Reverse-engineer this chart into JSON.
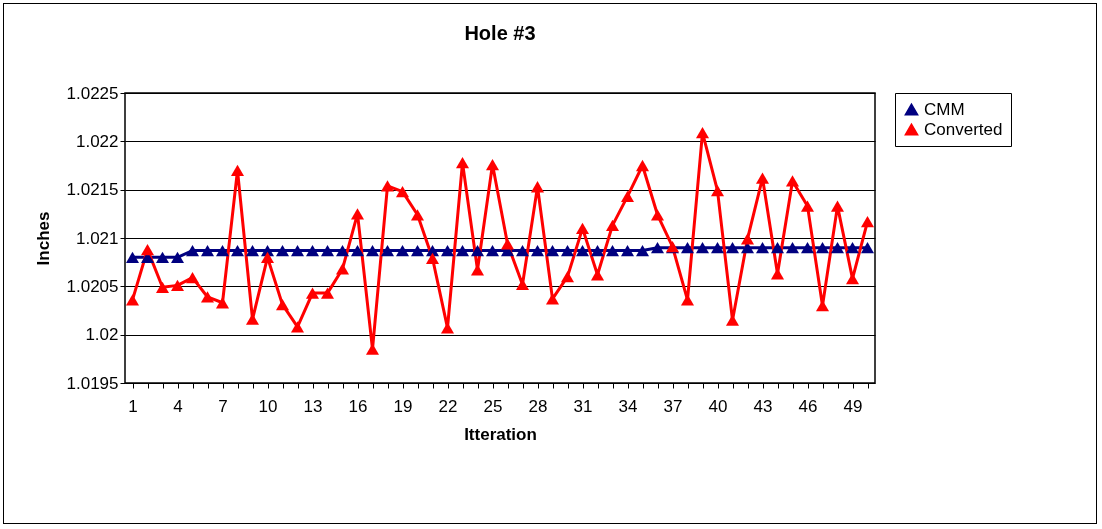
{
  "chart_data": {
    "type": "line",
    "title": "Hole #3",
    "xlabel": "Itteration",
    "ylabel": "Inches",
    "categories": [
      "1",
      null,
      null,
      "4",
      null,
      null,
      "7",
      null,
      null,
      "10",
      null,
      null,
      "13",
      null,
      null,
      "16",
      null,
      null,
      "19",
      null,
      null,
      "22",
      null,
      null,
      "25",
      null,
      null,
      "28",
      null,
      null,
      "31",
      null,
      null,
      "34",
      null,
      null,
      "37",
      null,
      null,
      "40",
      null,
      null,
      "43",
      null,
      null,
      "46",
      null,
      null,
      "49",
      null
    ],
    "series": [
      {
        "name": "CMM",
        "color": "#000080",
        "values": [
          1.0208,
          1.0208,
          1.0208,
          1.0208,
          1.02087,
          1.02087,
          1.02087,
          1.02087,
          1.02087,
          1.02087,
          1.02087,
          1.02087,
          1.02087,
          1.02087,
          1.02087,
          1.02087,
          1.02087,
          1.02087,
          1.02087,
          1.02087,
          1.02087,
          1.02087,
          1.02087,
          1.02087,
          1.02087,
          1.02087,
          1.02087,
          1.02087,
          1.02087,
          1.02087,
          1.02087,
          1.02087,
          1.02087,
          1.02087,
          1.02087,
          1.0209,
          1.0209,
          1.0209,
          1.0209,
          1.0209,
          1.0209,
          1.0209,
          1.0209,
          1.0209,
          1.0209,
          1.0209,
          1.0209,
          1.0209,
          1.0209,
          1.0209
        ]
      },
      {
        "name": "Converted",
        "color": "#ff0000",
        "values": [
          1.02036,
          1.02088,
          1.02049,
          1.02051,
          1.02059,
          1.02039,
          1.02033,
          1.0217,
          1.02016,
          1.0208,
          1.02031,
          1.02008,
          1.02043,
          1.02043,
          1.02068,
          1.02125,
          1.01985,
          1.02154,
          1.02148,
          1.02124,
          1.02079,
          1.02007,
          1.02178,
          1.02067,
          1.02176,
          1.02094,
          1.02052,
          1.02153,
          1.02037,
          1.0206,
          1.0211,
          1.02062,
          1.02113,
          1.02143,
          1.02175,
          1.02124,
          1.02091,
          1.02036,
          1.02209,
          1.02149,
          1.02015,
          1.02099,
          1.02162,
          1.02063,
          1.02159,
          1.02133,
          1.0203,
          1.02133,
          1.02058,
          1.02117
        ]
      }
    ],
    "ylim": [
      1.0195,
      1.0225
    ],
    "yticks": [
      1.0195,
      1.02,
      1.0205,
      1.021,
      1.0215,
      1.022,
      1.0225
    ],
    "grid": "y",
    "legend": "right",
    "marker": "triangle",
    "line_style": "solid"
  }
}
